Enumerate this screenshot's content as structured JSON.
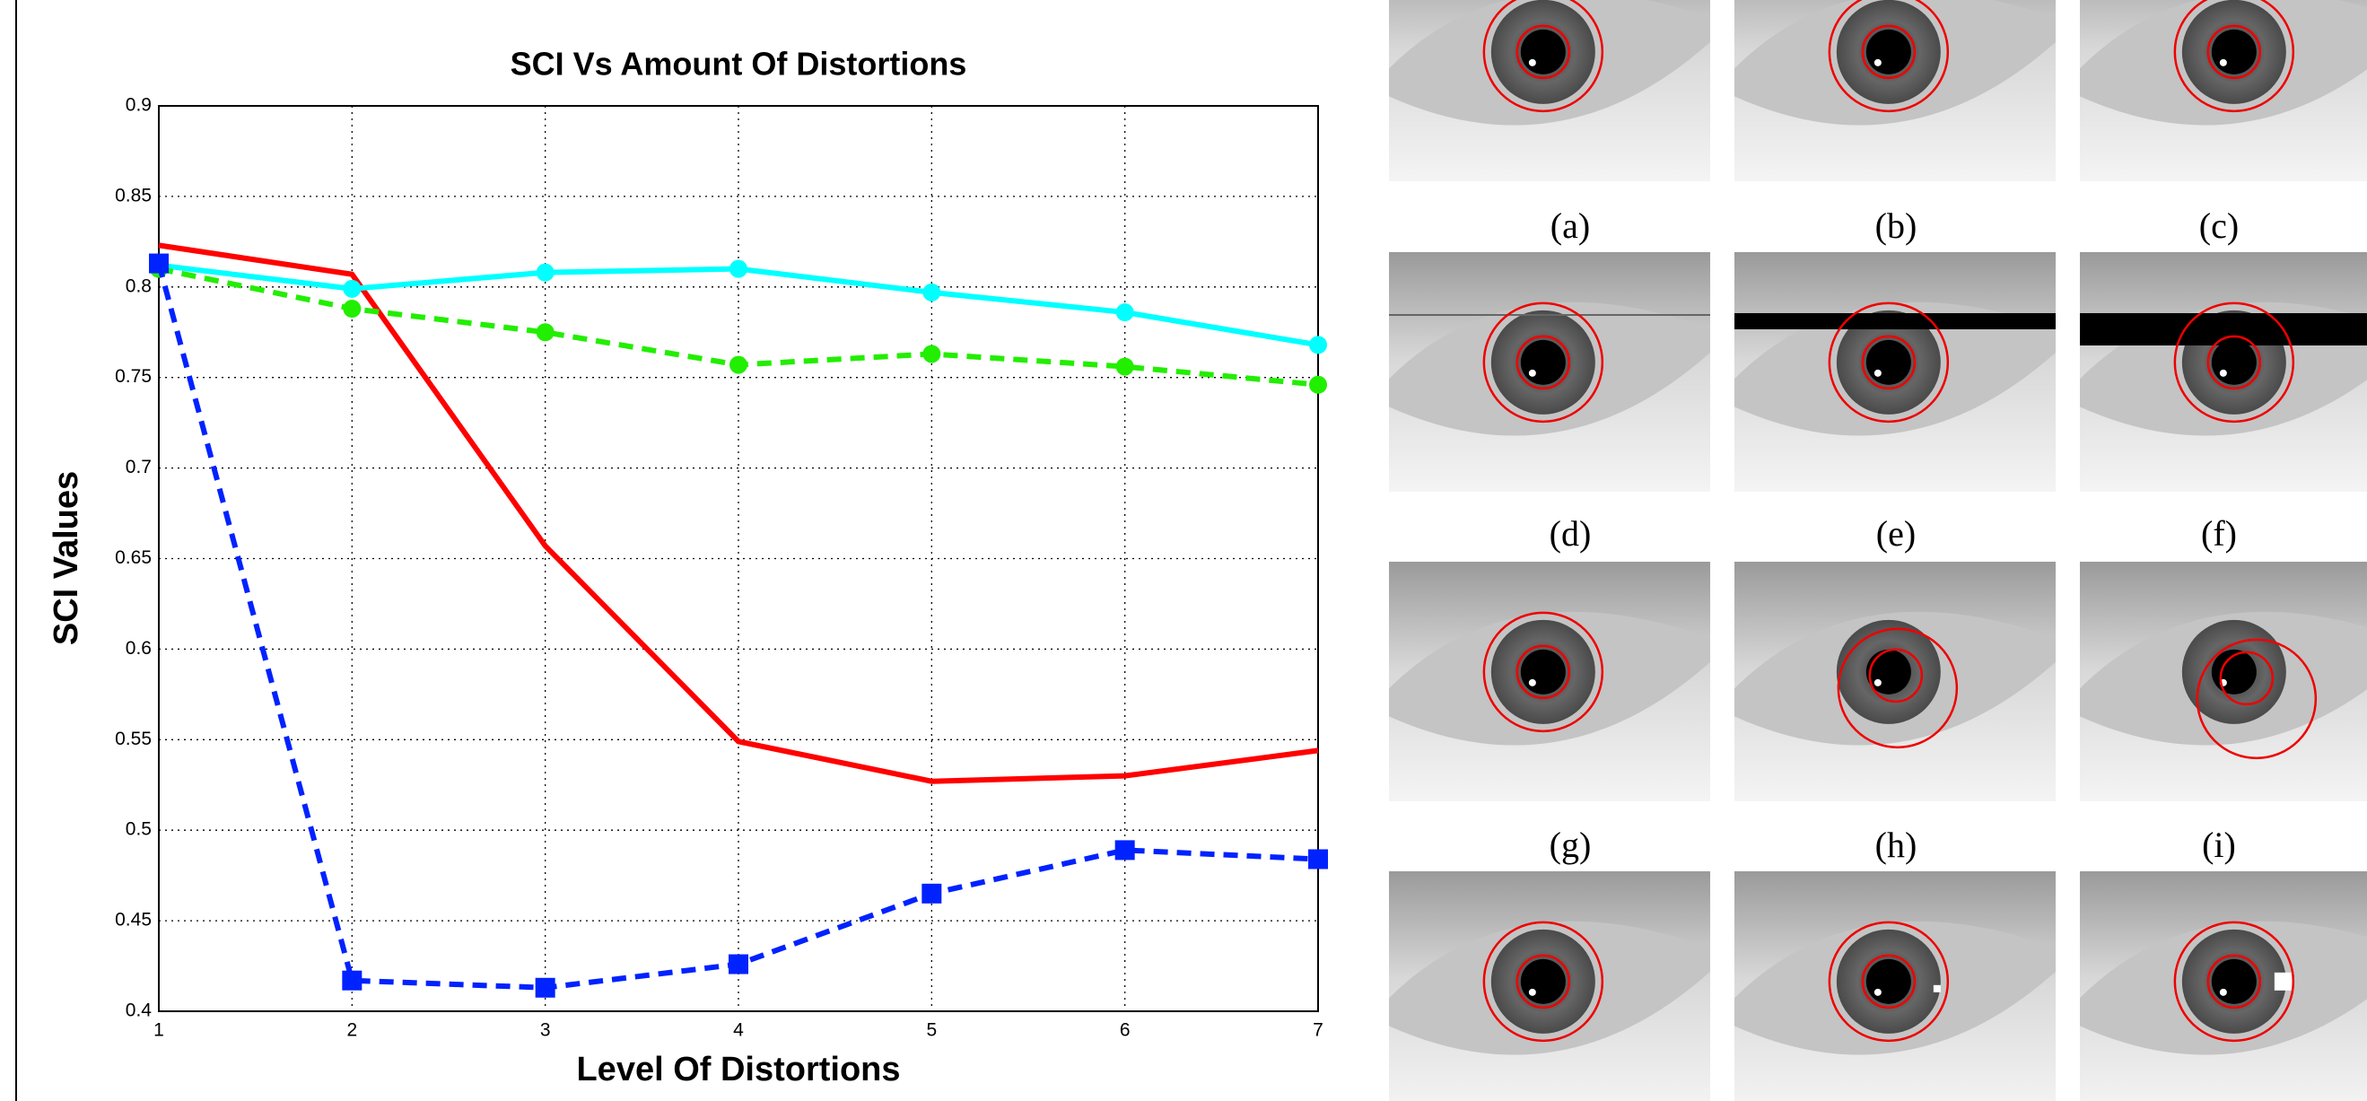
{
  "chart_data": {
    "type": "line",
    "title": "SCI Vs Amount Of Distortions",
    "x_label": "Level Of Distortions",
    "y_label": "SCI Values",
    "x": [
      1,
      2,
      3,
      4,
      5,
      6,
      7
    ],
    "xlim": [
      1,
      7
    ],
    "xticks": [
      1,
      2,
      3,
      4,
      5,
      6,
      7
    ],
    "ylim": [
      0.4,
      0.9
    ],
    "yticks": [
      0.4,
      0.45,
      0.5,
      0.55,
      0.6,
      0.65,
      0.7,
      0.75,
      0.8,
      0.85,
      0.9
    ],
    "grid": true,
    "series": [
      {
        "color": "#ff0000",
        "dashed": false,
        "marker": "none",
        "values": [
          0.823,
          0.807,
          0.657,
          0.549,
          0.527,
          0.53,
          0.544
        ]
      },
      {
        "color": "#00ffff",
        "dashed": false,
        "marker": "circle",
        "values": [
          0.812,
          0.799,
          0.808,
          0.81,
          0.797,
          0.786,
          0.768
        ]
      },
      {
        "color": "#22ee00",
        "dashed": true,
        "marker": "circle",
        "values": [
          0.81,
          0.788,
          0.775,
          0.757,
          0.763,
          0.756,
          0.746
        ]
      },
      {
        "color": "#0022ff",
        "dashed": true,
        "marker": "square",
        "values": [
          0.813,
          0.417,
          0.413,
          0.426,
          0.465,
          0.489,
          0.484
        ]
      }
    ]
  },
  "panels": {
    "captions": [
      "(a)",
      "(b)",
      "(c)",
      "(d)",
      "(e)",
      "(f)",
      "(g)",
      "(h)",
      "(i)"
    ]
  }
}
